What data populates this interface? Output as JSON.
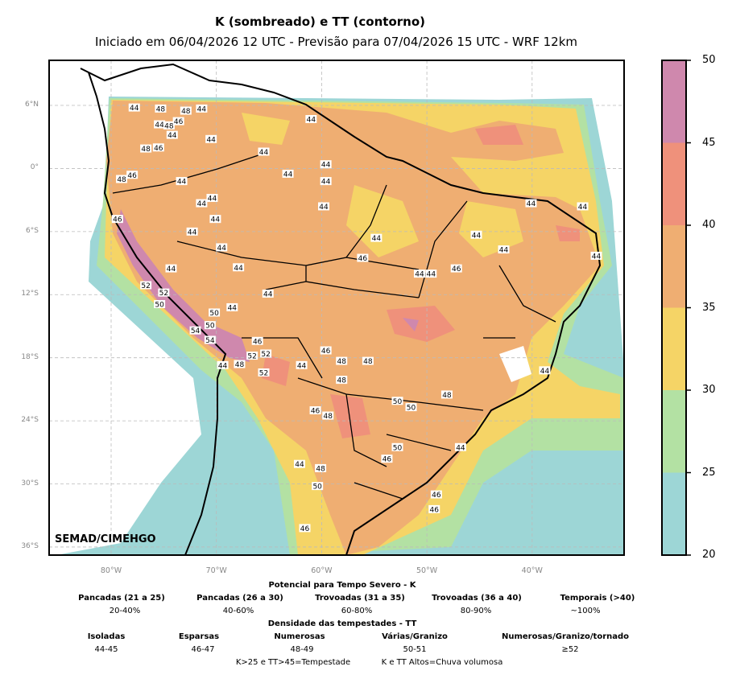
{
  "title": "K (sombreado) e TT (contorno)",
  "subtitle": "Iniciado em 06/04/2026 12 UTC - Previsão para 07/04/2026 15 UTC - WRF 12km",
  "credit": "SEMAD/CIMEHGO",
  "map": {
    "lat_labels": [
      {
        "lat": 6,
        "label": "6°N"
      },
      {
        "lat": 0,
        "label": "0°"
      },
      {
        "lat": -6,
        "label": "6°S"
      },
      {
        "lat": -12,
        "label": "12°S"
      },
      {
        "lat": -18,
        "label": "18°S"
      },
      {
        "lat": -24,
        "label": "24°S"
      },
      {
        "lat": -30,
        "label": "30°S"
      },
      {
        "lat": -36,
        "label": "36°S"
      }
    ],
    "lon_labels": [
      {
        "lon": -80,
        "label": "80°W"
      },
      {
        "lon": -70,
        "label": "70°W"
      },
      {
        "lon": -60,
        "label": "60°W"
      },
      {
        "lon": -50,
        "label": "50°W"
      },
      {
        "lon": -40,
        "label": "40°W"
      }
    ],
    "extent": {
      "lon_min": -85.9,
      "lon_max": -31.3,
      "lat_min": -36.8,
      "lat_max": 10.3
    },
    "tt_contour_labels": [
      [
        -77.8,
        5.8,
        "44"
      ],
      [
        -75.3,
        5.7,
        "48"
      ],
      [
        -72.9,
        5.5,
        "48"
      ],
      [
        -71.4,
        5.7,
        "44"
      ],
      [
        -75.4,
        4.2,
        "44"
      ],
      [
        -74.5,
        4.1,
        "48"
      ],
      [
        -73.6,
        4.5,
        "46"
      ],
      [
        -74.2,
        3.2,
        "44"
      ],
      [
        -70.5,
        2.8,
        "44"
      ],
      [
        -76.7,
        1.9,
        "48"
      ],
      [
        -75.5,
        2.0,
        "46"
      ],
      [
        -79.0,
        -1.0,
        "48"
      ],
      [
        -78.0,
        -0.6,
        "46"
      ],
      [
        -73.3,
        -1.2,
        "44"
      ],
      [
        -70.4,
        -2.8,
        "44"
      ],
      [
        -71.4,
        -3.3,
        "44"
      ],
      [
        -70.1,
        -4.8,
        "44"
      ],
      [
        -79.4,
        -4.8,
        "46"
      ],
      [
        -72.3,
        -6.0,
        "44"
      ],
      [
        -69.5,
        -7.5,
        "44"
      ],
      [
        -74.3,
        -9.5,
        "44"
      ],
      [
        -67.9,
        -9.4,
        "44"
      ],
      [
        -76.7,
        -11.1,
        "52"
      ],
      [
        -75.0,
        -11.8,
        "52"
      ],
      [
        -75.4,
        -12.9,
        "50"
      ],
      [
        -70.2,
        -13.7,
        "50"
      ],
      [
        -68.5,
        -13.2,
        "44"
      ],
      [
        -70.6,
        -14.9,
        "50"
      ],
      [
        -72.0,
        -15.4,
        "54"
      ],
      [
        -70.6,
        -16.3,
        "54"
      ],
      [
        -66.1,
        -16.4,
        "46"
      ],
      [
        -66.6,
        -17.8,
        "52"
      ],
      [
        -65.3,
        -17.6,
        "52"
      ],
      [
        -67.8,
        -18.6,
        "48"
      ],
      [
        -69.4,
        -18.7,
        "44"
      ],
      [
        -65.5,
        -19.4,
        "52"
      ],
      [
        -65.1,
        -11.9,
        "44"
      ],
      [
        -61.0,
        4.7,
        "44"
      ],
      [
        -65.5,
        1.6,
        "44"
      ],
      [
        -63.2,
        -0.5,
        "44"
      ],
      [
        -59.6,
        0.4,
        "44"
      ],
      [
        -59.6,
        -1.2,
        "44"
      ],
      [
        -59.8,
        -3.6,
        "44"
      ],
      [
        -54.8,
        -6.6,
        "44"
      ],
      [
        -56.1,
        -8.5,
        "46"
      ],
      [
        -50.7,
        -10.0,
        "44"
      ],
      [
        -49.6,
        -10.0,
        "44"
      ],
      [
        -47.2,
        -9.5,
        "46"
      ],
      [
        -45.3,
        -6.3,
        "44"
      ],
      [
        -42.7,
        -7.7,
        "44"
      ],
      [
        -40.1,
        -3.3,
        "44"
      ],
      [
        -35.2,
        -3.6,
        "44"
      ],
      [
        -33.9,
        -8.3,
        "44"
      ],
      [
        -59.6,
        -17.3,
        "46"
      ],
      [
        -58.1,
        -18.3,
        "48"
      ],
      [
        -55.6,
        -18.3,
        "48"
      ],
      [
        -58.1,
        -20.1,
        "48"
      ],
      [
        -61.9,
        -18.7,
        "44"
      ],
      [
        -52.8,
        -22.1,
        "50"
      ],
      [
        -51.5,
        -22.7,
        "50"
      ],
      [
        -48.1,
        -21.5,
        "48"
      ],
      [
        -60.6,
        -23.0,
        "46"
      ],
      [
        -59.4,
        -23.5,
        "48"
      ],
      [
        -52.8,
        -26.5,
        "50"
      ],
      [
        -53.8,
        -27.6,
        "46"
      ],
      [
        -46.8,
        -26.5,
        "44"
      ],
      [
        -38.8,
        -19.2,
        "44"
      ],
      [
        -62.1,
        -28.1,
        "44"
      ],
      [
        -60.1,
        -28.5,
        "48"
      ],
      [
        -60.4,
        -30.2,
        "50"
      ],
      [
        -49.1,
        -31.0,
        "46"
      ],
      [
        -49.3,
        -32.4,
        "46"
      ],
      [
        -61.6,
        -34.2,
        "46"
      ]
    ]
  },
  "colorbar": {
    "bounds": [
      20,
      25,
      30,
      35,
      40,
      45,
      50
    ],
    "colors": [
      "#9dd6d6",
      "#b3e1a3",
      "#f5d466",
      "#efae72",
      "#ef917b",
      "#cf88ad"
    ]
  },
  "legend": {
    "k_title": "Potencial para Tempo Severo - K",
    "k_items": [
      {
        "label": "Pancadas (21 a 25)",
        "value": "20-40%"
      },
      {
        "label": "Pancadas (26 a 30)",
        "value": "40-60%"
      },
      {
        "label": "Trovoadas (31 a 35)",
        "value": "60-80%"
      },
      {
        "label": "Trovoadas (36 a 40)",
        "value": "80-90%"
      },
      {
        "label": "Temporais (>40)",
        "value": "~100%"
      }
    ],
    "tt_title": "Densidade das tempestades - TT",
    "tt_items": [
      {
        "label": "Isoladas",
        "value": "44-45"
      },
      {
        "label": "Esparsas",
        "value": "46-47"
      },
      {
        "label": "Numerosas",
        "value": "48-49"
      },
      {
        "label": "Várias/Granizo",
        "value": "50-51"
      },
      {
        "label": "Numerosas/Granizo/tornado",
        "value": "≥52"
      }
    ],
    "note1": "K>25 e TT>45=Tempestade",
    "note2": "K e TT Altos=Chuva volumosa"
  }
}
